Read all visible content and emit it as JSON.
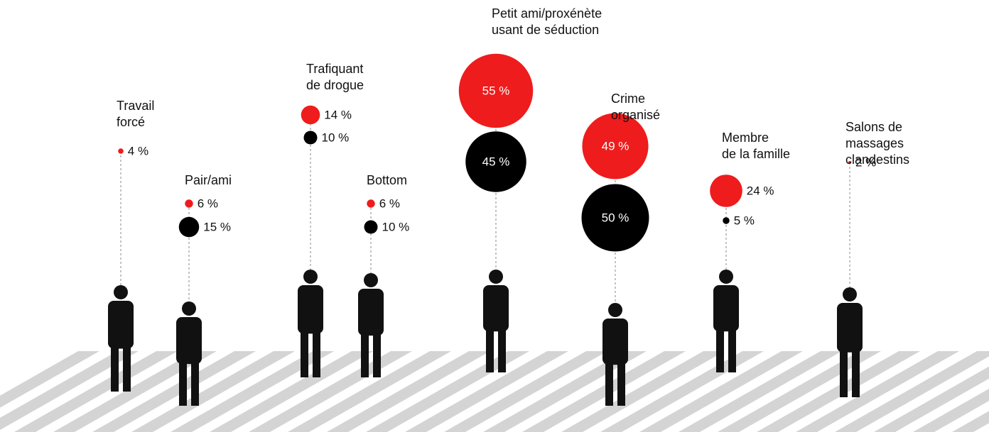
{
  "chart_data": {
    "type": "bubble",
    "categories": [
      "Travail\nforcé",
      "Pair/ami",
      "Trafiquant\nde drogue",
      "Bottom",
      "Petit ami/proxénète\nusant de séduction",
      "Crime\norganisé",
      "Membre\nde la famille",
      "Salons de\nmassages\nclandestins"
    ],
    "series": [
      {
        "color": "#ee1c1c",
        "values": [
          4,
          6,
          14,
          6,
          55,
          49,
          24,
          2
        ],
        "value_labels": [
          "4 %",
          "6 %",
          "14 %",
          "6 %",
          "55 %",
          "49 %",
          "24 %",
          "2 %"
        ]
      },
      {
        "color": "#000000",
        "values": [
          null,
          15,
          10,
          10,
          45,
          50,
          5,
          null
        ],
        "value_labels": [
          null,
          "15 %",
          "10 %",
          "10 %",
          "45 %",
          "50 %",
          "5 %",
          null
        ]
      }
    ]
  }
}
